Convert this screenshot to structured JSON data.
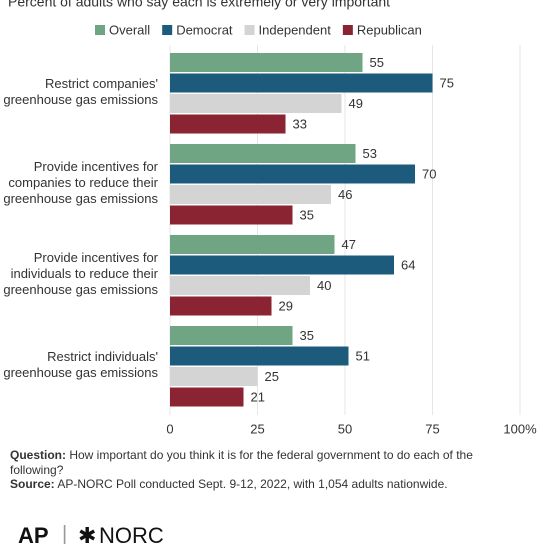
{
  "chart_data": {
    "type": "bar",
    "orientation": "horizontal",
    "subtitle": "Percent of adults who say each is extremely or very important",
    "categories": [
      "Restrict companies' greenhouse gas emissions",
      "Provide incentives for companies to reduce their greenhouse gas emissions",
      "Provide incentives for individuals to reduce their greenhouse gas emissions",
      "Restrict individuals' greenhouse gas emissions"
    ],
    "series": [
      {
        "name": "Overall",
        "color": "#6fa582",
        "values": [
          55,
          53,
          47,
          35
        ]
      },
      {
        "name": "Democrat",
        "color": "#1c5b7c",
        "values": [
          75,
          70,
          64,
          51
        ]
      },
      {
        "name": "Independent",
        "color": "#d4d4d4",
        "values": [
          49,
          46,
          40,
          25
        ]
      },
      {
        "name": "Republican",
        "color": "#8a2332",
        "values": [
          33,
          35,
          29,
          21
        ]
      }
    ],
    "xlim": [
      0,
      100
    ],
    "xticks": [
      0,
      25,
      50,
      75,
      {
        "value": 100,
        "label": "100%"
      }
    ],
    "grid": true,
    "legend": "top"
  },
  "notes": {
    "question_label": "Question:",
    "question": "How important do you think it is for the federal government to do each of the following?",
    "source_label": "Source:",
    "source": "AP-NORC Poll conducted Sept. 9-12, 2022, with 1,054 adults nationwide."
  },
  "logos": [
    "AP",
    "NORC"
  ]
}
